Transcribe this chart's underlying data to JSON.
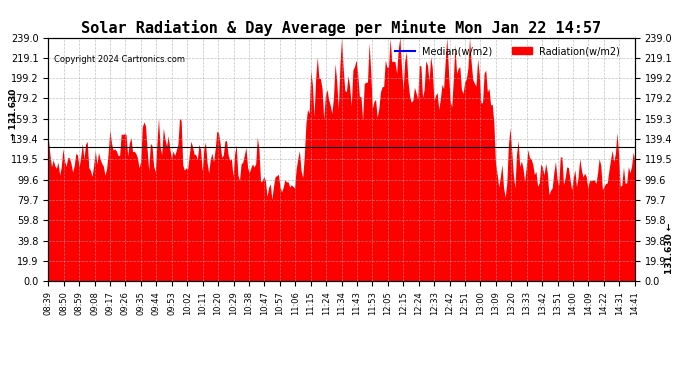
{
  "title": "Solar Radiation & Day Average per Minute Mon Jan 22 14:57",
  "copyright": "Copyright 2024 Cartronics.com",
  "median_value": 131.63,
  "y_max": 239.0,
  "y_min": 0.0,
  "y_ticks": [
    0.0,
    19.9,
    39.8,
    59.8,
    79.7,
    99.6,
    119.5,
    139.4,
    159.3,
    179.2,
    199.2,
    219.1,
    239.0
  ],
  "radiation_color": "#FF0000",
  "median_color": "#0000FF",
  "background_color": "#FFFFFF",
  "grid_color": "#AAAAAA",
  "title_fontsize": 11,
  "x_labels": [
    "08:39",
    "08:50",
    "08:59",
    "09:08",
    "09:17",
    "09:26",
    "09:35",
    "09:44",
    "09:53",
    "10:02",
    "10:11",
    "10:20",
    "10:29",
    "10:38",
    "10:47",
    "10:57",
    "11:06",
    "11:15",
    "11:24",
    "11:34",
    "11:43",
    "11:53",
    "12:05",
    "12:15",
    "12:24",
    "12:33",
    "12:42",
    "12:51",
    "13:00",
    "13:09",
    "13:20",
    "13:33",
    "13:42",
    "13:51",
    "14:00",
    "14:09",
    "14:22",
    "14:31",
    "14:41"
  ],
  "median_label": "131.630",
  "legend_median_label": "Median(w/m2)",
  "legend_radiation_label": "Radiation(w/m2)"
}
